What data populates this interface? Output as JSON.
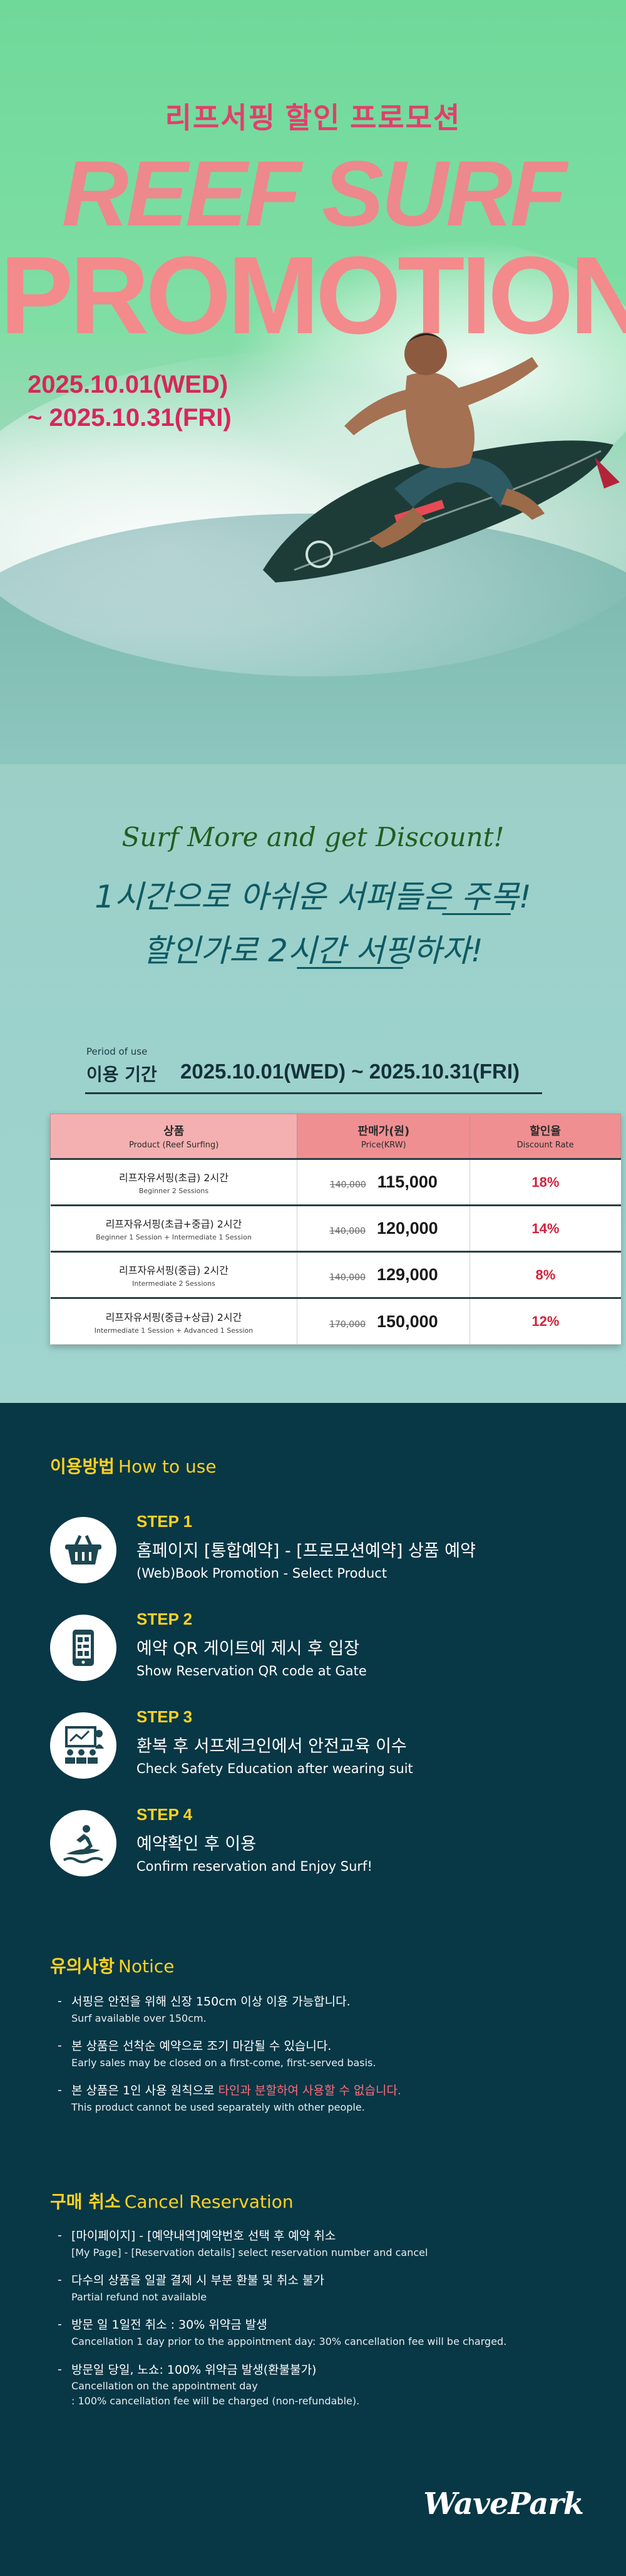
{
  "hero": {
    "title_ko": "리프서핑 할인 프로모션",
    "big_line1": "REEF SURF",
    "big_line2": "PROMOTION",
    "date_line1": "2025.10.01(WED)",
    "date_line2": "~ 2025.10.31(FRI)"
  },
  "slogan": {
    "en": "Surf More and get Discount!",
    "ko_line1": "1시간으로 아쉬운 서퍼들은 주목!",
    "ko_line2": "할인가로 2시간 서핑하자!"
  },
  "period": {
    "label_en": "Period of use",
    "label_ko": "이용 기간",
    "value": "2025.10.01(WED) ~ 2025.10.31(FRI)"
  },
  "table": {
    "headers": [
      {
        "ko": "상품",
        "en": "Product (Reef Surfing)"
      },
      {
        "ko": "판매가(원)",
        "en": "Price(KRW)"
      },
      {
        "ko": "할인율",
        "en": "Discount Rate"
      }
    ],
    "rows": [
      {
        "name": "리프자유서핑(초급) 2시간",
        "desc": "Beginner 2 Sessions",
        "old_price": "140,000",
        "price": "115,000",
        "rate": "18%"
      },
      {
        "name": "리프자유서핑(초급+중급) 2시간",
        "desc": "Beginner 1 Session + Intermediate 1 Session",
        "old_price": "140,000",
        "price": "120,000",
        "rate": "14%"
      },
      {
        "name": "리프자유서핑(중급) 2시간",
        "desc": "Intermediate 2 Sessions",
        "old_price": "140,000",
        "price": "129,000",
        "rate": "8%"
      },
      {
        "name": "리프자유서핑(중급+상급) 2시간",
        "desc": "Intermediate 1 Session + Advanced 1 Session",
        "old_price": "170,000",
        "price": "150,000",
        "rate": "12%"
      }
    ]
  },
  "howto": {
    "title_ko": "이용방법",
    "title_en": "How to use",
    "steps": [
      {
        "num": "STEP 1",
        "ko": "홈페이지 [통합예약] - [프로모션예약] 상품 예약",
        "en": "(Web)Book Promotion - Select Product",
        "icon": "basket-icon"
      },
      {
        "num": "STEP 2",
        "ko": "예약 QR 게이트에 제시 후 입장",
        "en": "Show Reservation QR code at Gate",
        "icon": "qr-phone-icon"
      },
      {
        "num": "STEP 3",
        "ko": "환복 후 서프체크인에서 안전교육 이수",
        "en": "Check Safety Education after wearing suit",
        "icon": "education-icon"
      },
      {
        "num": "STEP 4",
        "ko": "예약확인 후 이용",
        "en": "Confirm reservation and Enjoy Surf!",
        "icon": "surfer-icon"
      }
    ]
  },
  "notice": {
    "title_ko": "유의사항",
    "title_en": "Notice",
    "items": [
      {
        "ko": "서핑은 안전을 위해 신장 150cm 이상 이용 가능합니다.",
        "en": "Surf available over 150cm."
      },
      {
        "ko": "본 상품은 선착순 예약으로 조기 마감될 수 있습니다.",
        "en": "Early sales may be closed on a first-come, first-served basis."
      },
      {
        "ko_pre": "본 상품은 1인 사용 원칙으로 ",
        "ko_hl": "타인과 분할하여 사용할 수 없습니다.",
        "en": "This product cannot be used separately with other people."
      }
    ]
  },
  "cancel": {
    "title_ko": "구매 취소",
    "title_en": "Cancel Reservation",
    "items": [
      {
        "ko": "[마이페이지] - [예약내역]예약번호 선택 후 예약 취소",
        "en": "[My Page] - [Reservation details] select reservation number and cancel"
      },
      {
        "ko": "다수의 상품을 일괄 결제 시 부분 환불 및 취소 불가",
        "en": "Partial refund not available"
      },
      {
        "ko": "방문 일 1일전 취소 : 30% 위약금 발생",
        "en": "Cancellation 1 day prior to the appointment day: 30% cancellation fee will be charged."
      },
      {
        "ko": "방문일 당일, 노쇼: 100% 위약금 발생(환불불가)",
        "en": "Cancellation on the appointment day",
        "en2": ": 100% cancellation fee will be charged (non-refundable)."
      }
    ]
  },
  "logo": "WavePark",
  "colors": {
    "hero_green": "#7fdea4",
    "title_pink": "#e23f6b",
    "big_text_salmon": "#f38a8c",
    "dark_bg": "#083746",
    "accent_yellow": "#ffd21f",
    "discount_red": "#d3213c"
  }
}
